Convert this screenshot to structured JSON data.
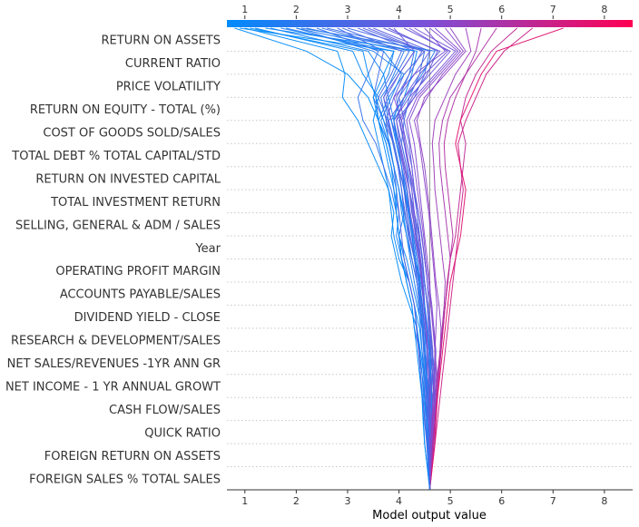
{
  "chart_data": {
    "type": "line",
    "subtype": "shap-decision-plot",
    "title": "",
    "xlabel": "Model output value",
    "ylabel": "",
    "xlim": [
      0.65,
      8.55
    ],
    "x_ticks": [
      1,
      2,
      3,
      4,
      5,
      6,
      7,
      8
    ],
    "base_value": 4.6,
    "grid": "dotted horizontal lines at each feature row",
    "colorbar_position": "top",
    "colormap": {
      "low": "#008bfb",
      "mid": "#7d4fd6",
      "high": "#ff0052"
    },
    "features_top_to_bottom": [
      "RETURN ON ASSETS",
      "CURRENT RATIO",
      "PRICE VOLATILITY",
      "RETURN ON EQUITY - TOTAL (%)",
      "COST OF GOODS SOLD/SALES",
      "TOTAL DEBT % TOTAL CAPITAL/STD",
      "RETURN ON INVESTED CAPITAL",
      "TOTAL INVESTMENT RETURN",
      "SELLING, GENERAL & ADM / SALES",
      "Year",
      "OPERATING PROFIT MARGIN",
      "ACCOUNTS PAYABLE/SALES",
      "DIVIDEND YIELD - CLOSE",
      "RESEARCH & DEVELOPMENT/SALES",
      "NET SALES/REVENUES -1YR ANN GR",
      "NET INCOME - 1 YR ANNUAL GROWT",
      "CASH FLOW/SALES",
      "QUICK RATIO",
      "FOREIGN RETURN ON ASSETS",
      "FOREIGN SALES % TOTAL SALES"
    ],
    "series_note": "Each series gives cumulative model output at each feature boundary from bottom (base value) to top (final prediction); positions listed bottom-to-top.",
    "series": [
      {
        "values": [
          4.6,
          4.58,
          4.55,
          4.5,
          4.48,
          4.45,
          4.4,
          4.35,
          4.3,
          4.2,
          4.1,
          4.0,
          3.95,
          3.9,
          3.8,
          3.7,
          3.6,
          3.4,
          3.0,
          2.2,
          0.8
        ]
      },
      {
        "values": [
          4.6,
          4.62,
          4.6,
          4.55,
          4.5,
          4.48,
          4.42,
          4.35,
          4.2,
          4.05,
          3.95,
          3.85,
          3.9,
          3.8,
          3.6,
          3.4,
          3.2,
          2.9,
          2.95,
          2.8,
          1.0
        ]
      },
      {
        "values": [
          4.6,
          4.62,
          4.65,
          4.6,
          4.55,
          4.5,
          4.45,
          4.4,
          4.3,
          4.2,
          4.0,
          3.9,
          3.85,
          3.8,
          3.7,
          3.6,
          3.5,
          3.6,
          3.3,
          3.1,
          1.2
        ]
      },
      {
        "values": [
          4.6,
          4.58,
          4.6,
          4.62,
          4.6,
          4.55,
          4.5,
          4.45,
          4.35,
          4.25,
          4.15,
          4.0,
          4.1,
          4.0,
          3.9,
          3.8,
          3.6,
          3.8,
          3.7,
          3.4,
          1.5
        ]
      },
      {
        "values": [
          4.6,
          4.55,
          4.5,
          4.48,
          4.45,
          4.42,
          4.4,
          4.35,
          4.3,
          4.2,
          4.05,
          3.95,
          4.0,
          3.9,
          3.85,
          3.75,
          3.6,
          3.55,
          3.8,
          3.9,
          1.7
        ]
      },
      {
        "values": [
          4.6,
          4.62,
          4.65,
          4.7,
          4.68,
          4.65,
          4.6,
          4.55,
          4.5,
          4.45,
          4.3,
          4.2,
          4.15,
          4.1,
          4.0,
          3.9,
          3.8,
          3.7,
          3.9,
          4.1,
          2.0
        ]
      },
      {
        "values": [
          4.6,
          4.6,
          4.62,
          4.65,
          4.66,
          4.7,
          4.65,
          4.6,
          4.55,
          4.5,
          4.45,
          4.4,
          4.3,
          4.2,
          4.1,
          4.0,
          3.9,
          4.0,
          4.2,
          4.3,
          2.2
        ]
      },
      {
        "values": [
          4.6,
          4.57,
          4.55,
          4.52,
          4.5,
          4.45,
          4.4,
          4.3,
          4.25,
          4.15,
          4.05,
          4.0,
          3.95,
          3.85,
          3.7,
          3.55,
          3.3,
          3.2,
          3.4,
          3.6,
          2.4
        ]
      },
      {
        "values": [
          4.6,
          4.63,
          4.65,
          4.64,
          4.62,
          4.6,
          4.58,
          4.55,
          4.5,
          4.48,
          4.4,
          4.35,
          4.3,
          4.25,
          4.15,
          4.05,
          4.1,
          4.2,
          4.4,
          4.5,
          2.6
        ]
      },
      {
        "values": [
          4.6,
          4.58,
          4.56,
          4.55,
          4.52,
          4.5,
          4.48,
          4.45,
          4.4,
          4.35,
          4.3,
          4.2,
          4.1,
          4.05,
          4.0,
          3.9,
          3.7,
          3.5,
          3.6,
          3.7,
          2.8
        ]
      },
      {
        "values": [
          4.6,
          4.6,
          4.58,
          4.6,
          4.63,
          4.65,
          4.62,
          4.6,
          4.55,
          4.5,
          4.42,
          4.35,
          4.25,
          4.2,
          4.15,
          4.05,
          3.95,
          4.3,
          4.5,
          4.6,
          3.0
        ]
      },
      {
        "values": [
          4.6,
          4.62,
          4.64,
          4.66,
          4.65,
          4.6,
          4.55,
          4.5,
          4.45,
          4.4,
          4.35,
          4.28,
          4.2,
          4.1,
          4.05,
          3.95,
          3.85,
          3.75,
          4.0,
          4.3,
          3.2
        ]
      },
      {
        "values": [
          4.6,
          4.57,
          4.54,
          4.5,
          4.46,
          4.42,
          4.38,
          4.34,
          4.3,
          4.2,
          4.1,
          4.05,
          4.0,
          3.95,
          3.9,
          3.8,
          3.75,
          3.9,
          4.1,
          4.5,
          3.4
        ]
      },
      {
        "values": [
          4.6,
          4.62,
          4.65,
          4.68,
          4.7,
          4.66,
          4.62,
          4.58,
          4.55,
          4.5,
          4.45,
          4.4,
          4.35,
          4.3,
          4.25,
          4.2,
          4.1,
          4.0,
          4.3,
          4.6,
          3.5
        ]
      },
      {
        "values": [
          4.6,
          4.59,
          4.57,
          4.55,
          4.53,
          4.52,
          4.5,
          4.48,
          4.44,
          4.38,
          4.3,
          4.22,
          4.15,
          4.1,
          4.0,
          3.9,
          3.8,
          4.1,
          4.4,
          4.8,
          3.7
        ]
      },
      {
        "values": [
          4.6,
          4.61,
          4.63,
          4.62,
          4.6,
          4.58,
          4.55,
          4.52,
          4.5,
          4.46,
          4.4,
          4.33,
          4.28,
          4.2,
          4.1,
          4.0,
          3.85,
          3.7,
          4.0,
          4.3,
          3.9
        ]
      },
      {
        "values": [
          4.6,
          4.58,
          4.56,
          4.58,
          4.6,
          4.62,
          4.6,
          4.56,
          4.5,
          4.45,
          4.38,
          4.3,
          4.22,
          4.16,
          4.08,
          3.98,
          3.9,
          4.2,
          4.6,
          5.0,
          4.1
        ]
      },
      {
        "values": [
          4.6,
          4.62,
          4.64,
          4.66,
          4.68,
          4.7,
          4.72,
          4.68,
          4.62,
          4.55,
          4.5,
          4.44,
          4.38,
          4.3,
          4.2,
          4.1,
          4.0,
          4.3,
          4.7,
          5.1,
          4.3
        ]
      },
      {
        "values": [
          4.6,
          4.6,
          4.61,
          4.62,
          4.6,
          4.58,
          4.56,
          4.54,
          4.5,
          4.45,
          4.42,
          4.38,
          4.3,
          4.25,
          4.2,
          4.12,
          4.05,
          3.9,
          4.3,
          4.9,
          4.5
        ]
      },
      {
        "values": [
          4.6,
          4.63,
          4.66,
          4.7,
          4.72,
          4.74,
          4.7,
          4.66,
          4.62,
          4.6,
          4.55,
          4.5,
          4.45,
          4.4,
          4.35,
          4.3,
          4.2,
          4.4,
          4.8,
          5.2,
          4.7
        ]
      },
      {
        "values": [
          4.6,
          4.64,
          4.68,
          4.72,
          4.75,
          4.78,
          4.8,
          4.82,
          4.78,
          4.72,
          4.68,
          4.64,
          4.6,
          4.55,
          4.5,
          4.42,
          4.35,
          4.5,
          4.9,
          5.3,
          5.0
        ]
      },
      {
        "values": [
          4.6,
          4.62,
          4.65,
          4.68,
          4.72,
          4.76,
          4.8,
          4.84,
          4.88,
          4.9,
          4.85,
          4.8,
          4.75,
          4.7,
          4.68,
          4.65,
          4.7,
          4.9,
          5.1,
          5.4,
          5.3
        ]
      },
      {
        "values": [
          4.6,
          4.64,
          4.68,
          4.7,
          4.74,
          4.78,
          4.82,
          4.86,
          4.9,
          4.95,
          5.0,
          4.95,
          4.9,
          4.85,
          4.8,
          4.78,
          4.85,
          5.0,
          5.3,
          5.5,
          5.6
        ]
      },
      {
        "values": [
          4.6,
          4.6,
          4.62,
          4.65,
          4.7,
          4.75,
          4.8,
          4.85,
          4.9,
          4.95,
          5.0,
          5.05,
          5.0,
          4.95,
          4.9,
          4.88,
          4.95,
          5.1,
          5.3,
          5.6,
          5.9
        ]
      },
      {
        "values": [
          4.6,
          4.63,
          4.66,
          4.7,
          4.74,
          4.78,
          4.82,
          4.86,
          4.9,
          4.94,
          5.0,
          5.1,
          5.15,
          5.2,
          5.25,
          5.3,
          5.2,
          5.3,
          5.5,
          5.8,
          6.3
        ]
      },
      {
        "values": [
          4.6,
          4.65,
          4.7,
          4.75,
          4.8,
          4.85,
          4.9,
          4.95,
          5.0,
          5.05,
          5.1,
          5.15,
          5.2,
          5.25,
          5.2,
          5.15,
          5.3,
          5.5,
          5.7,
          6.05,
          6.6
        ]
      },
      {
        "values": [
          4.6,
          4.65,
          4.7,
          4.72,
          4.75,
          4.8,
          4.85,
          4.9,
          4.95,
          5.0,
          5.1,
          5.2,
          5.25,
          5.3,
          5.2,
          5.1,
          5.2,
          5.4,
          5.6,
          5.9,
          7.2
        ]
      },
      {
        "values": [
          4.6,
          4.55,
          4.5,
          4.47,
          4.45,
          4.4,
          4.35,
          4.3,
          4.25,
          4.15,
          4.05,
          4.0,
          3.95,
          3.95,
          3.85,
          3.75,
          3.6,
          3.5,
          3.7,
          3.9,
          0.9
        ]
      },
      {
        "values": [
          4.6,
          4.6,
          4.58,
          4.56,
          4.55,
          4.52,
          4.5,
          4.47,
          4.42,
          4.35,
          4.25,
          4.15,
          4.08,
          4.0,
          3.9,
          3.82,
          3.7,
          3.55,
          3.4,
          3.3,
          1.1
        ]
      },
      {
        "values": [
          4.6,
          4.6,
          4.62,
          4.63,
          4.64,
          4.62,
          4.6,
          4.55,
          4.5,
          4.42,
          4.35,
          4.28,
          4.2,
          4.12,
          4.05,
          3.95,
          3.85,
          4.1,
          4.25,
          4.35,
          1.4
        ]
      },
      {
        "values": [
          4.6,
          4.58,
          4.55,
          4.53,
          4.5,
          4.48,
          4.45,
          4.42,
          4.38,
          4.3,
          4.22,
          4.15,
          4.05,
          4.0,
          3.9,
          3.8,
          3.65,
          3.85,
          4.05,
          3.7,
          1.8
        ]
      },
      {
        "values": [
          4.6,
          4.61,
          4.6,
          4.58,
          4.57,
          4.55,
          4.52,
          4.5,
          4.46,
          4.4,
          4.3,
          4.25,
          4.2,
          4.15,
          4.05,
          3.95,
          3.9,
          4.15,
          4.45,
          4.7,
          2.1
        ]
      },
      {
        "values": [
          4.6,
          4.57,
          4.55,
          4.56,
          4.58,
          4.6,
          4.55,
          4.5,
          4.45,
          4.38,
          4.32,
          4.26,
          4.18,
          4.1,
          4.0,
          3.9,
          3.75,
          3.65,
          3.95,
          4.2,
          2.5
        ]
      },
      {
        "values": [
          4.6,
          4.62,
          4.63,
          4.6,
          4.58,
          4.55,
          4.5,
          4.46,
          4.4,
          4.35,
          4.25,
          4.18,
          4.12,
          4.05,
          3.98,
          3.88,
          3.78,
          3.6,
          3.85,
          4.05,
          2.9
        ]
      },
      {
        "values": [
          4.6,
          4.6,
          4.61,
          4.63,
          4.66,
          4.68,
          4.64,
          4.6,
          4.56,
          4.5,
          4.46,
          4.4,
          4.35,
          4.28,
          4.18,
          4.1,
          4.02,
          3.95,
          4.2,
          4.45,
          3.3
        ]
      },
      {
        "values": [
          4.6,
          4.59,
          4.58,
          4.6,
          4.62,
          4.64,
          4.66,
          4.62,
          4.58,
          4.55,
          4.5,
          4.45,
          4.38,
          4.3,
          4.25,
          4.15,
          4.05,
          4.25,
          4.55,
          4.75,
          3.8
        ]
      },
      {
        "values": [
          4.6,
          4.62,
          4.6,
          4.58,
          4.56,
          4.55,
          4.55,
          4.52,
          4.48,
          4.44,
          4.38,
          4.32,
          4.26,
          4.2,
          4.12,
          4.02,
          3.95,
          4.1,
          4.5,
          4.95,
          4.2
        ]
      },
      {
        "values": [
          4.6,
          4.6,
          4.63,
          4.67,
          4.7,
          4.72,
          4.7,
          4.68,
          4.64,
          4.58,
          4.52,
          4.48,
          4.42,
          4.36,
          4.3,
          4.22,
          4.15,
          4.35,
          4.75,
          5.15,
          4.6
        ]
      },
      {
        "values": [
          4.6,
          4.61,
          4.62,
          4.64,
          4.66,
          4.68,
          4.7,
          4.72,
          4.74,
          4.7,
          4.66,
          4.62,
          4.58,
          4.52,
          4.46,
          4.4,
          4.3,
          4.55,
          4.85,
          5.25,
          4.9
        ]
      },
      {
        "values": [
          4.6,
          4.58,
          4.57,
          4.56,
          4.55,
          4.54,
          4.5,
          4.46,
          4.42,
          4.38,
          4.32,
          4.25,
          4.18,
          4.12,
          4.05,
          3.98,
          3.9,
          3.8,
          4.1,
          3.5,
          2.0
        ]
      }
    ]
  }
}
